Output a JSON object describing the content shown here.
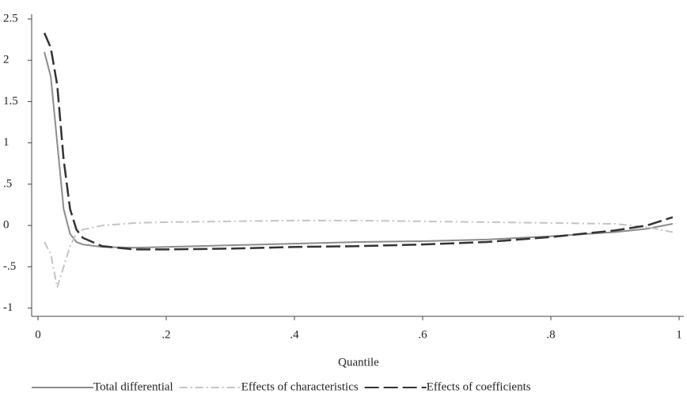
{
  "chart_data": {
    "type": "line",
    "x_label": "Quantile",
    "x": [
      0.01,
      0.02,
      0.03,
      0.04,
      0.05,
      0.06,
      0.07,
      0.1,
      0.15,
      0.2,
      0.3,
      0.4,
      0.5,
      0.6,
      0.7,
      0.8,
      0.9,
      0.95,
      0.99
    ],
    "series": [
      {
        "name": "Total differential",
        "color": "#8c8c8c",
        "dash": "solid",
        "values": [
          2.1,
          1.8,
          1.0,
          0.2,
          -0.1,
          -0.2,
          -0.23,
          -0.26,
          -0.27,
          -0.26,
          -0.24,
          -0.22,
          -0.2,
          -0.19,
          -0.17,
          -0.13,
          -0.08,
          -0.04,
          0.02
        ]
      },
      {
        "name": "Effects of characteristics",
        "color": "#c4c4c4",
        "dash": "dashdot",
        "values": [
          -0.2,
          -0.35,
          -0.75,
          -0.5,
          -0.25,
          -0.1,
          -0.05,
          0.0,
          0.03,
          0.04,
          0.05,
          0.06,
          0.06,
          0.05,
          0.04,
          0.03,
          0.02,
          -0.02,
          -0.08
        ]
      },
      {
        "name": "Effects of coefficients",
        "color": "#333333",
        "dash": "longdash",
        "values": [
          2.33,
          2.15,
          1.7,
          0.8,
          0.2,
          -0.05,
          -0.15,
          -0.25,
          -0.29,
          -0.29,
          -0.28,
          -0.26,
          -0.25,
          -0.23,
          -0.2,
          -0.14,
          -0.06,
          0.0,
          0.1
        ]
      }
    ],
    "xlim": [
      0,
      1
    ],
    "xticks": [
      0,
      {
        "value": 0.2,
        "label": ".2"
      },
      {
        "value": 0.4,
        "label": ".4"
      },
      {
        "value": 0.6,
        "label": ".6"
      },
      {
        "value": 0.8,
        "label": ".8"
      },
      1
    ],
    "ylim": [
      -1.1,
      2.5
    ],
    "yticks": [
      -1,
      {
        "value": -0.5,
        "label": "-.5"
      },
      0,
      {
        "value": 0.5,
        "label": ".5"
      },
      1,
      1.5,
      2,
      2.5
    ],
    "grid": false,
    "legend": "bottom"
  }
}
